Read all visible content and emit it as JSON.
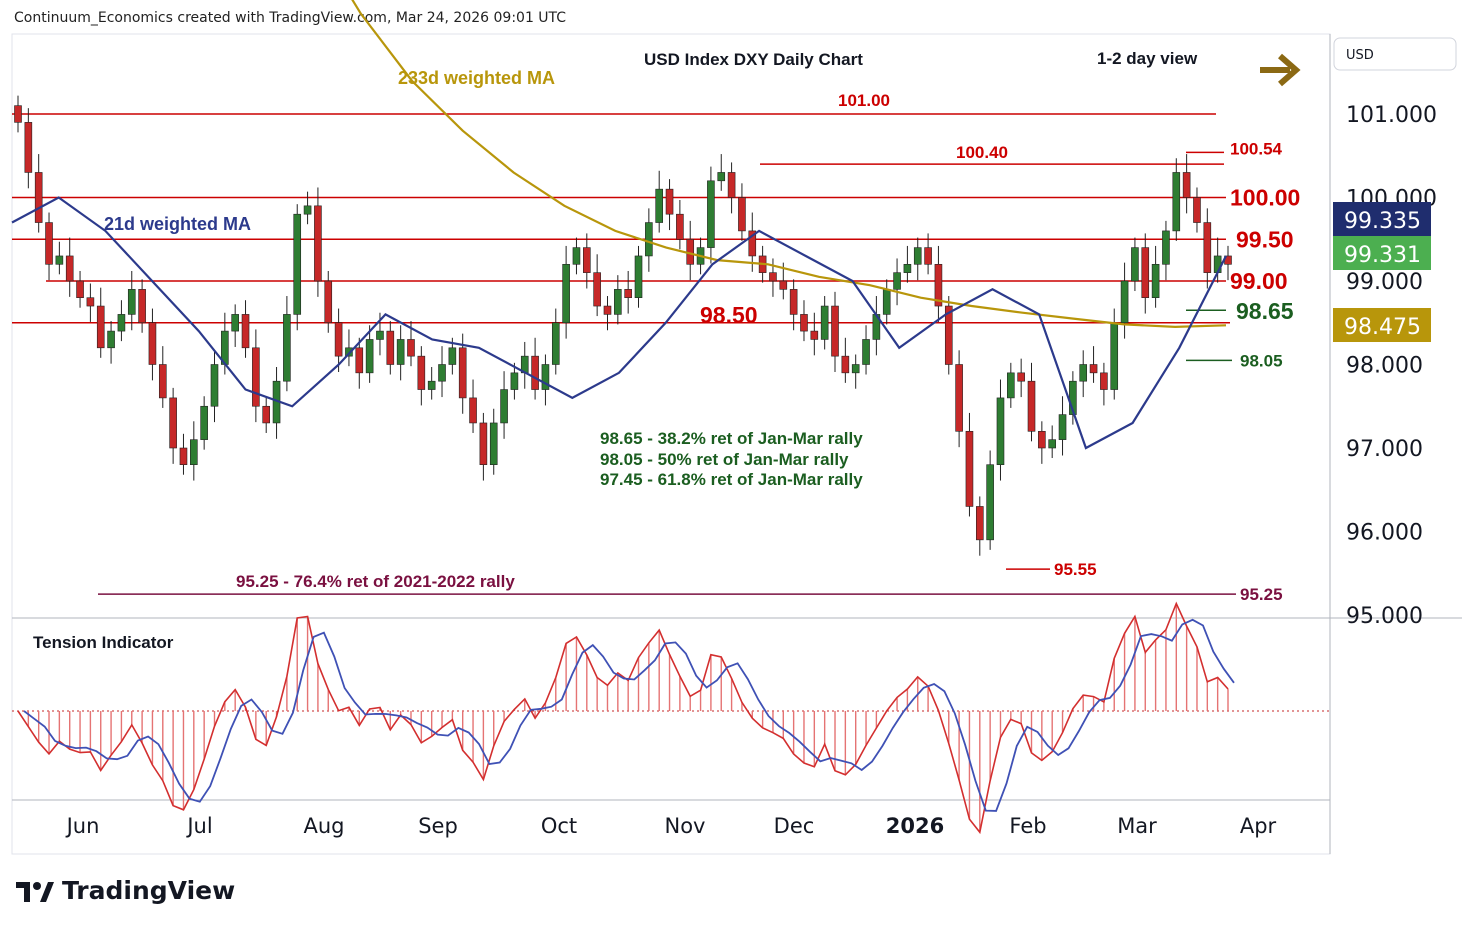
{
  "header": {
    "caption": "Continuum_Economics created with TradingView.com, Mar 24, 2026 09:01 UTC"
  },
  "chart": {
    "title": "USD Index DXY Daily Chart",
    "view_label": "1-2 day view",
    "currency_label": "USD",
    "ma_long_label": "233d weighted MA",
    "ma_short_label": "21d weighted MA",
    "fib_notes": [
      "98.65 - 38.2% ret of Jan-Mar rally",
      "98.05 - 50% ret of Jan-Mar rally",
      "97.45 - 61.8% ret of Jan-Mar rally"
    ],
    "low_note": "95.25 - 76.4% ret of 2021-2022 rally",
    "indicator_label": "Tension Indicator",
    "brand": "TradingView"
  },
  "chart_data": {
    "type": "candlestick",
    "symbol": "DXY",
    "price_axis": {
      "ticks": [
        101.0,
        100.0,
        99.0,
        98.0,
        97.0,
        96.0,
        95.0
      ],
      "tick_labels": [
        "101.000",
        "100.000",
        "99.000",
        "98.000",
        "97.000",
        "96.000",
        "95.000"
      ],
      "range": [
        94.9,
        101.9
      ]
    },
    "time_axis": {
      "labels": [
        "Jun",
        "Jul",
        "Aug",
        "Sep",
        "Oct",
        "Nov",
        "Dec",
        "2026",
        "Feb",
        "Mar",
        "Apr"
      ]
    },
    "price_badges": [
      {
        "value": "99.335",
        "color": "#1f2d6e"
      },
      {
        "value": "99.331",
        "color": "#4caf50"
      },
      {
        "value": "98.475",
        "color": "#b8960b"
      }
    ],
    "levels": [
      {
        "label": "101.00",
        "value": 101.0,
        "color": "#cc0000"
      },
      {
        "label": "100.40",
        "value": 100.4,
        "color": "#cc0000"
      },
      {
        "label": "100.54",
        "value": 100.54,
        "color": "#cc0000"
      },
      {
        "label": "100.00",
        "value": 100.0,
        "color": "#cc0000"
      },
      {
        "label": "99.50",
        "value": 99.5,
        "color": "#cc0000"
      },
      {
        "label": "99.00",
        "value": 99.0,
        "color": "#cc0000"
      },
      {
        "label": "98.65",
        "value": 98.65,
        "color": "#1b5e20"
      },
      {
        "label": "98.50",
        "value": 98.5,
        "color": "#cc0000"
      },
      {
        "label": "98.05",
        "value": 98.05,
        "color": "#1b5e20"
      },
      {
        "label": "95.55",
        "value": 95.55,
        "color": "#cc0000"
      },
      {
        "label": "95.25",
        "value": 95.25,
        "color": "#7a1040"
      }
    ],
    "close_path": [
      100.9,
      100.3,
      99.7,
      99.2,
      99.3,
      99.0,
      98.8,
      98.7,
      98.2,
      98.4,
      98.6,
      98.9,
      98.5,
      98.0,
      97.6,
      97.0,
      96.8,
      97.1,
      97.5,
      98.0,
      98.4,
      98.6,
      98.2,
      97.5,
      97.3,
      97.8,
      98.6,
      99.8,
      99.9,
      99.0,
      98.5,
      98.1,
      98.2,
      97.9,
      98.3,
      98.4,
      98.0,
      98.3,
      98.1,
      97.7,
      97.8,
      98.0,
      98.2,
      97.6,
      97.3,
      96.8,
      97.3,
      97.7,
      97.9,
      98.1,
      97.7,
      98.0,
      98.5,
      99.2,
      99.4,
      99.1,
      98.7,
      98.6,
      98.9,
      98.8,
      99.3,
      99.7,
      100.1,
      99.8,
      99.5,
      99.2,
      99.4,
      100.2,
      100.3,
      100.0,
      99.6,
      99.3,
      99.1,
      99.0,
      98.9,
      98.6,
      98.4,
      98.3,
      98.7,
      98.1,
      97.9,
      98.0,
      98.3,
      98.6,
      98.9,
      99.1,
      99.2,
      99.4,
      99.2,
      98.7,
      98.0,
      97.2,
      96.3,
      95.9,
      96.8,
      97.6,
      97.9,
      97.8,
      97.2,
      97.0,
      97.1,
      97.4,
      97.8,
      98.0,
      97.9,
      97.7,
      98.5,
      99.0,
      99.4,
      98.8,
      99.2,
      99.6,
      100.3,
      100.0,
      99.7,
      99.1,
      99.3,
      99.2
    ],
    "ma_233_path": [
      103.2,
      102.2,
      101.4,
      100.8,
      100.3,
      99.9,
      99.6,
      99.4,
      99.25,
      99.2,
      99.05,
      98.95,
      98.8,
      98.7,
      98.62,
      98.55,
      98.48,
      98.45,
      98.47
    ],
    "ma_21_path": [
      99.7,
      100.0,
      99.6,
      99.0,
      98.4,
      97.7,
      97.5,
      98.0,
      98.6,
      98.3,
      98.2,
      97.9,
      97.6,
      97.9,
      98.5,
      99.2,
      99.6,
      99.3,
      99.0,
      98.2,
      98.6,
      98.9,
      98.6,
      97.0,
      97.3,
      98.2,
      99.3
    ]
  },
  "colors": {
    "up": "#2e7d32",
    "down": "#c62828",
    "level": "#e00000",
    "ma_long": "#b8960b",
    "ma_short": "#2c3a8c"
  }
}
